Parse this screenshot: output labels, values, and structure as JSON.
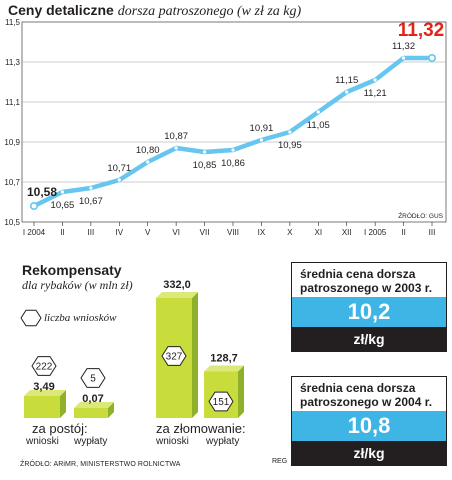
{
  "title": "Ceny detaliczne",
  "subtitle": "dorsza patroszonego (w zł za kg)",
  "source_top": "ŹRÓDŁO: GUS",
  "source_bottom": "ŹRÓDŁO: ARiMR, MINISTERSTWO ROLNICTWA",
  "credit": "REG",
  "colors": {
    "line": "#66c6ef",
    "bar_light": "#c8dd3c",
    "bar_dark": "#8fb02a",
    "value_box": "#3fb5e5",
    "dark": "#231f20"
  },
  "chart_data": [
    {
      "type": "line",
      "x": [
        "I 2004",
        "II",
        "III",
        "IV",
        "V",
        "VI",
        "VII",
        "VIII",
        "IX",
        "X",
        "XI",
        "XII",
        "I 2005",
        "II",
        "III"
      ],
      "values": [
        10.58,
        10.65,
        10.67,
        10.71,
        10.8,
        10.87,
        10.85,
        10.86,
        10.91,
        10.95,
        11.05,
        11.15,
        11.21,
        11.32,
        11.32
      ],
      "labels": [
        "10,58",
        "10,65",
        "10,67",
        "10,71",
        "10,80",
        "10,87",
        "10,85",
        "10,86",
        "10,91",
        "10,95",
        "11,05",
        "11,15",
        "11,21",
        "11,32",
        "11,32"
      ],
      "y_ticks": [
        "10,5",
        "10,7",
        "10,9",
        "11,1",
        "11,3",
        "11,5"
      ],
      "ylim": [
        10.5,
        11.5
      ],
      "grid": true
    },
    {
      "type": "bar",
      "title": "Rekompensaty",
      "subtitle": "dla rybaków (w mln zł)",
      "legend": "liczba wniosków",
      "groups": [
        {
          "label": "za postój:",
          "bars": [
            {
              "name": "wnioski",
              "value": 3.49,
              "value_label": "3,49",
              "count": "222"
            },
            {
              "name": "wypłaty",
              "value": 0.07,
              "value_label": "0,07",
              "count": "5"
            }
          ]
        },
        {
          "label": "za złomowanie:",
          "bars": [
            {
              "name": "wnioski",
              "value": 332.0,
              "value_label": "332,0",
              "count": "327"
            },
            {
              "name": "wypłaty",
              "value": 128.7,
              "value_label": "128,7",
              "count": "151"
            }
          ]
        }
      ]
    }
  ],
  "price_boxes": [
    {
      "header": "średnia cena dorsza patroszonego w 2003 r.",
      "value": "10,2",
      "unit": "zł/kg"
    },
    {
      "header": "średnia cena dorsza patroszonego w 2004 r.",
      "value": "10,8",
      "unit": "zł/kg"
    }
  ]
}
